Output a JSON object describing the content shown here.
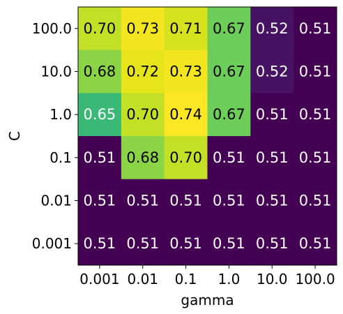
{
  "chart_data": {
    "type": "heatmap",
    "xlabel": "gamma",
    "ylabel": "C",
    "x_categories": [
      "0.001",
      "0.01",
      "0.1",
      "1.0",
      "10.0",
      "100.0"
    ],
    "y_categories": [
      "100.0",
      "10.0",
      "1.0",
      "0.1",
      "0.01",
      "0.001"
    ],
    "values": [
      [
        0.7,
        0.73,
        0.71,
        0.67,
        0.52,
        0.51
      ],
      [
        0.68,
        0.72,
        0.73,
        0.67,
        0.52,
        0.51
      ],
      [
        0.65,
        0.7,
        0.74,
        0.67,
        0.51,
        0.51
      ],
      [
        0.51,
        0.68,
        0.7,
        0.51,
        0.51,
        0.51
      ],
      [
        0.51,
        0.51,
        0.51,
        0.51,
        0.51,
        0.51
      ],
      [
        0.51,
        0.51,
        0.51,
        0.51,
        0.51,
        0.51
      ]
    ],
    "colormap": "viridis",
    "value_range": [
      0.51,
      0.74
    ],
    "label_format": "2-decimal"
  }
}
